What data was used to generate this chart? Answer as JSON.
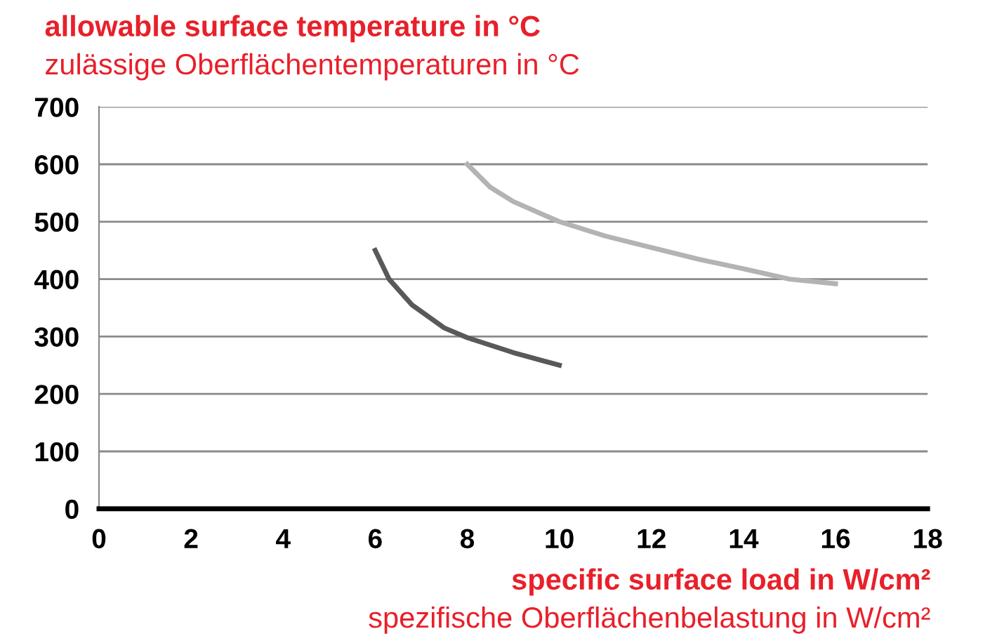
{
  "chart_data": {
    "type": "line",
    "ylabel": "allowable surface temperature in °C",
    "xlabel": "specific surface load in W/cm²",
    "annotations": [
      "zulässige Oberflächentemperaturen in °C",
      "spezifische Oberflächenbelastung in W/cm²"
    ],
    "series": [
      {
        "color": "#58595b",
        "x": [
          6,
          6.3,
          6.8,
          7.5,
          8,
          9,
          10
        ],
        "values": [
          450,
          400,
          355,
          315,
          298,
          272,
          250
        ]
      },
      {
        "color": "#b3b3b3",
        "x": [
          8,
          8.5,
          9,
          10,
          11,
          12,
          13,
          14,
          15,
          16
        ],
        "values": [
          600,
          560,
          535,
          500,
          475,
          455,
          435,
          418,
          400,
          392
        ]
      }
    ],
    "xlim": [
      0,
      18
    ],
    "xticks": [
      0,
      2,
      4,
      6,
      8,
      10,
      12,
      14,
      16,
      18
    ],
    "ylim": [
      0,
      700
    ],
    "yticks": [
      0,
      100,
      200,
      300,
      400,
      500,
      600,
      700
    ],
    "grid": "y",
    "legend": false,
    "marker": "none",
    "line_style": "solid"
  }
}
